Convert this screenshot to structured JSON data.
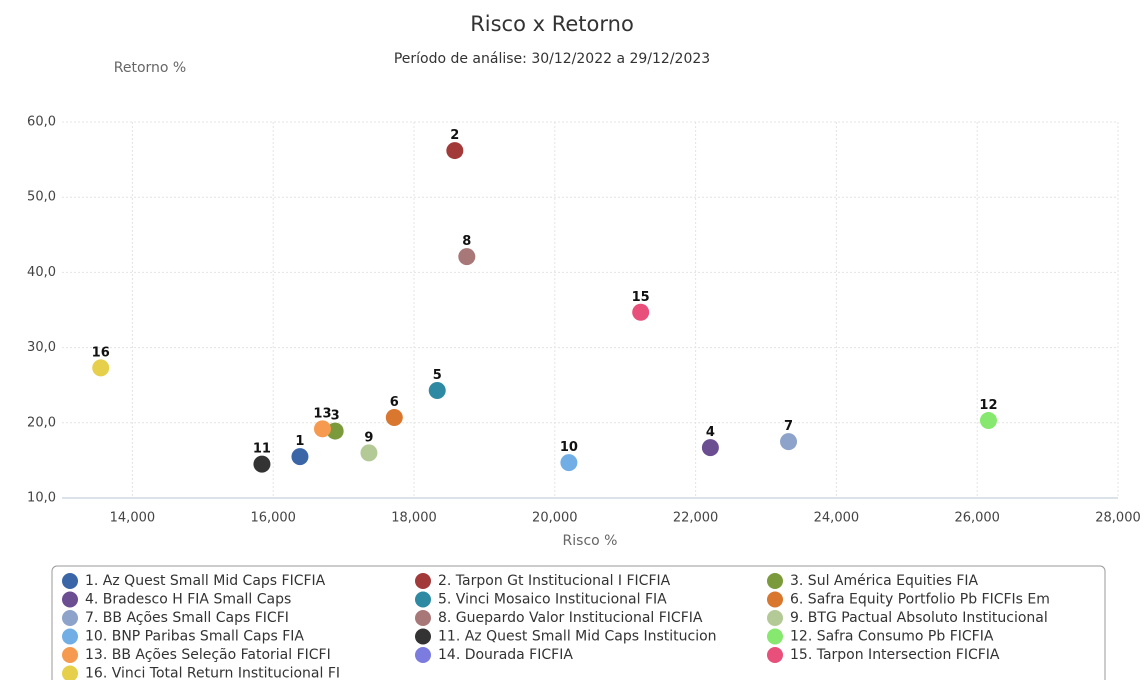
{
  "chart_data": {
    "type": "scatter",
    "title": "Risco x Retorno",
    "subtitle": "Período de análise: 30/12/2022 a 29/12/2023",
    "x_label": "Risco %",
    "y_label": "Retorno %",
    "xlim": [
      13000,
      28000
    ],
    "xticks": [
      {
        "value": 14000,
        "label": "14,000"
      },
      {
        "value": 16000,
        "label": "16,000"
      },
      {
        "value": 18000,
        "label": "18,000"
      },
      {
        "value": 20000,
        "label": "20,000"
      },
      {
        "value": 22000,
        "label": "22,000"
      },
      {
        "value": 24000,
        "label": "24,000"
      },
      {
        "value": 26000,
        "label": "26,000"
      },
      {
        "value": 28000,
        "label": "28,000"
      }
    ],
    "ylim": [
      10,
      60
    ],
    "yticks": [
      {
        "value": 10,
        "label": "10,0"
      },
      {
        "value": 20,
        "label": "20,0"
      },
      {
        "value": 30,
        "label": "30,0"
      },
      {
        "value": 40,
        "label": "40,0"
      },
      {
        "value": 50,
        "label": "50,0"
      },
      {
        "value": 60,
        "label": "60,0"
      }
    ],
    "grid": true,
    "series": [
      {
        "name": "1. Az Quest Small Mid Caps FICFIA",
        "label": "1",
        "color": "#3a66a8",
        "x": [
          16380
        ],
        "values": [
          15.5
        ]
      },
      {
        "name": "2. Tarpon Gt Institucional I FICFIA",
        "label": "2",
        "color": "#a33a3a",
        "x": [
          18580
        ],
        "values": [
          56.2
        ]
      },
      {
        "name": "3. Sul América Equities FIA",
        "label": "3",
        "color": "#7a9a3c",
        "x": [
          16880
        ],
        "values": [
          18.9
        ]
      },
      {
        "name": "4. Bradesco H FIA Small Caps",
        "label": "4",
        "color": "#6b4e91",
        "x": [
          22210
        ],
        "values": [
          16.7
        ]
      },
      {
        "name": "5. Vinci Mosaico Institucional FIA",
        "label": "5",
        "color": "#2e8aa3",
        "x": [
          18330
        ],
        "values": [
          24.3
        ]
      },
      {
        "name": "6. Safra Equity Portfolio Pb FICFIs Em",
        "label": "6",
        "color": "#d9772e",
        "x": [
          17720
        ],
        "values": [
          20.7
        ]
      },
      {
        "name": "7. BB Ações Small Caps FICFI",
        "label": "7",
        "color": "#8ea3c9",
        "x": [
          23320
        ],
        "values": [
          17.5
        ]
      },
      {
        "name": "8. Guepardo Valor Institucional FICFIA",
        "label": "8",
        "color": "#a87878",
        "x": [
          18750
        ],
        "values": [
          42.1
        ]
      },
      {
        "name": "9. BTG Pactual Absoluto Institucional",
        "label": "9",
        "color": "#b3c996",
        "x": [
          17360
        ],
        "values": [
          16.0
        ]
      },
      {
        "name": "10. BNP Paribas Small Caps FIA",
        "label": "10",
        "color": "#72aee6",
        "x": [
          20200
        ],
        "values": [
          14.7
        ]
      },
      {
        "name": "11. Az Quest Small Mid Caps Institucion",
        "label": "11",
        "color": "#333333",
        "x": [
          15840
        ],
        "values": [
          14.5
        ]
      },
      {
        "name": "12. Safra Consumo Pb FICFIA",
        "label": "12",
        "color": "#86e86e",
        "x": [
          26160
        ],
        "values": [
          20.3
        ]
      },
      {
        "name": "13. BB Ações Seleção Fatorial FICFI",
        "label": "13",
        "color": "#f59a4e",
        "x": [
          16700
        ],
        "values": [
          19.2
        ]
      },
      {
        "name": "14. Dourada FICFIA",
        "color": "#7b7be0",
        "x": [],
        "values": []
      },
      {
        "name": "15. Tarpon Intersection FICFIA",
        "label": "15",
        "color": "#e84f7a",
        "x": [
          21220
        ],
        "values": [
          34.7
        ]
      },
      {
        "name": "16. Vinci Total Return Institucional FI",
        "label": "16",
        "color": "#e6cf4a",
        "x": [
          13550
        ],
        "values": [
          27.3
        ]
      }
    ]
  }
}
